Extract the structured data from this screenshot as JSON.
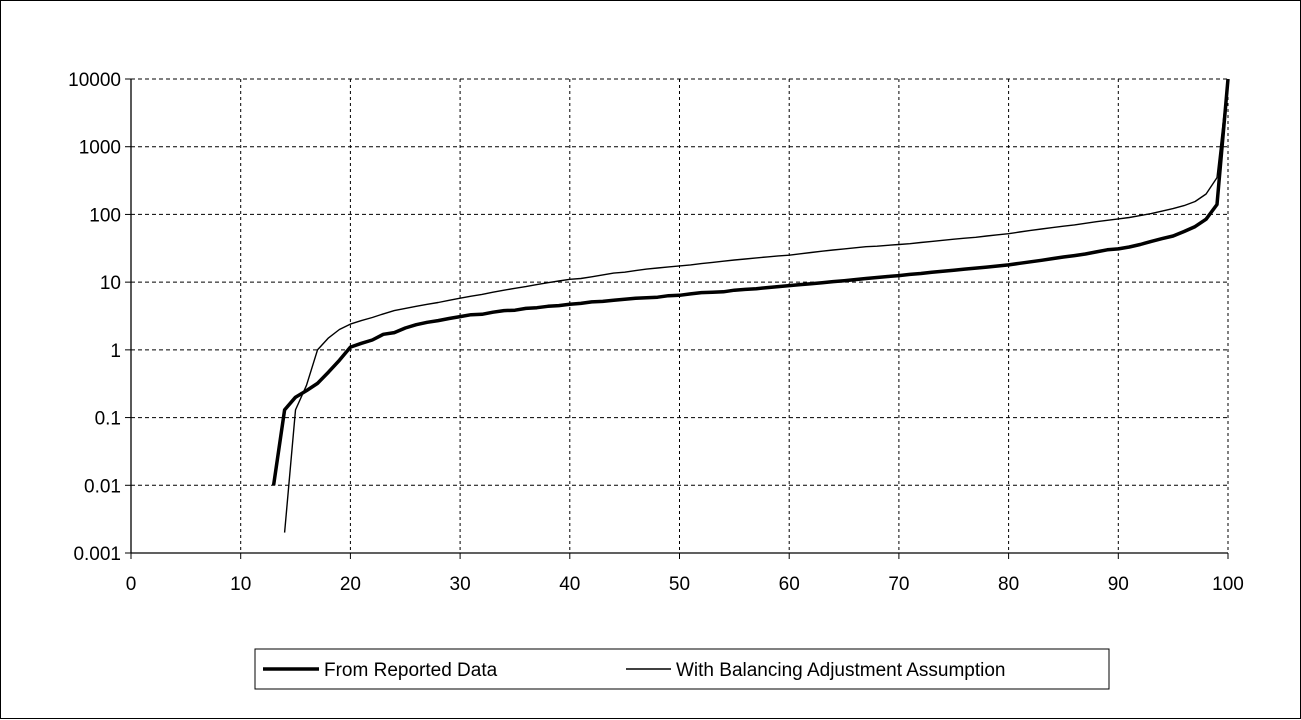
{
  "chart_data": {
    "type": "line",
    "title": "",
    "xlabel": "",
    "ylabel": "",
    "xlim": [
      0,
      100
    ],
    "ylim": [
      0.001,
      10000
    ],
    "yscale": "log",
    "x_ticks": [
      "0",
      "10",
      "20",
      "30",
      "40",
      "50",
      "60",
      "70",
      "80",
      "90",
      "100"
    ],
    "y_ticks": [
      "10000",
      "1000",
      "100",
      "10",
      "1",
      "0.1",
      "0.01",
      "0.001"
    ],
    "grid": true,
    "legend_position": "bottom",
    "series": [
      {
        "name": "From Reported Data",
        "color": "#000000",
        "line_style": "thick",
        "points": [
          [
            13,
            0.01
          ],
          [
            14,
            0.13
          ],
          [
            15,
            0.2
          ],
          [
            16,
            0.25
          ],
          [
            17,
            0.32
          ],
          [
            18,
            0.47
          ],
          [
            19,
            0.7
          ],
          [
            20,
            1.1
          ],
          [
            21,
            1.25
          ],
          [
            22,
            1.4
          ],
          [
            23,
            1.7
          ],
          [
            24,
            1.8
          ],
          [
            25,
            2.1
          ],
          [
            26,
            2.35
          ],
          [
            27,
            2.55
          ],
          [
            28,
            2.7
          ],
          [
            29,
            2.9
          ],
          [
            30,
            3.1
          ],
          [
            31,
            3.3
          ],
          [
            32,
            3.35
          ],
          [
            33,
            3.6
          ],
          [
            34,
            3.8
          ],
          [
            35,
            3.85
          ],
          [
            36,
            4.1
          ],
          [
            37,
            4.2
          ],
          [
            38,
            4.4
          ],
          [
            39,
            4.5
          ],
          [
            40,
            4.7
          ],
          [
            41,
            4.85
          ],
          [
            42,
            5.1
          ],
          [
            43,
            5.2
          ],
          [
            44,
            5.4
          ],
          [
            45,
            5.6
          ],
          [
            46,
            5.8
          ],
          [
            47,
            5.9
          ],
          [
            48,
            6.0
          ],
          [
            49,
            6.3
          ],
          [
            50,
            6.4
          ],
          [
            51,
            6.7
          ],
          [
            52,
            7.0
          ],
          [
            53,
            7.1
          ],
          [
            54,
            7.2
          ],
          [
            55,
            7.6
          ],
          [
            56,
            7.8
          ],
          [
            57,
            8.0
          ],
          [
            58,
            8.3
          ],
          [
            59,
            8.6
          ],
          [
            60,
            8.9
          ],
          [
            61,
            9.2
          ],
          [
            62,
            9.5
          ],
          [
            63,
            9.8
          ],
          [
            64,
            10.2
          ],
          [
            65,
            10.5
          ],
          [
            66,
            10.9
          ],
          [
            67,
            11.3
          ],
          [
            68,
            11.7
          ],
          [
            69,
            12.1
          ],
          [
            70,
            12.5
          ],
          [
            71,
            13.0
          ],
          [
            72,
            13.4
          ],
          [
            73,
            14.0
          ],
          [
            74,
            14.5
          ],
          [
            75,
            15.0
          ],
          [
            76,
            15.6
          ],
          [
            77,
            16.1
          ],
          [
            78,
            16.7
          ],
          [
            79,
            17.3
          ],
          [
            80,
            18.0
          ],
          [
            81,
            19.0
          ],
          [
            82,
            20.0
          ],
          [
            83,
            21.0
          ],
          [
            84,
            22.3
          ],
          [
            85,
            23.5
          ],
          [
            86,
            24.7
          ],
          [
            87,
            26.0
          ],
          [
            88,
            28.0
          ],
          [
            89,
            30.0
          ],
          [
            90,
            31.0
          ],
          [
            91,
            33.0
          ],
          [
            92,
            36.0
          ],
          [
            93,
            40.0
          ],
          [
            94,
            44.0
          ],
          [
            95,
            48.0
          ],
          [
            96,
            56.0
          ],
          [
            97,
            66.0
          ],
          [
            98,
            85.0
          ],
          [
            99,
            140.0
          ],
          [
            100,
            10000
          ]
        ]
      },
      {
        "name": "With Balancing Adjustment Assumption",
        "color": "#000000",
        "line_style": "thin",
        "points": [
          [
            14,
            0.002
          ],
          [
            15,
            0.13
          ],
          [
            16,
            0.3
          ],
          [
            17,
            1.0
          ],
          [
            18,
            1.5
          ],
          [
            19,
            2.0
          ],
          [
            20,
            2.4
          ],
          [
            21,
            2.7
          ],
          [
            22,
            3.0
          ],
          [
            23,
            3.4
          ],
          [
            24,
            3.8
          ],
          [
            25,
            4.1
          ],
          [
            26,
            4.4
          ],
          [
            27,
            4.7
          ],
          [
            28,
            5.0
          ],
          [
            29,
            5.4
          ],
          [
            30,
            5.8
          ],
          [
            31,
            6.2
          ],
          [
            32,
            6.6
          ],
          [
            33,
            7.1
          ],
          [
            34,
            7.6
          ],
          [
            35,
            8.1
          ],
          [
            36,
            8.6
          ],
          [
            37,
            9.2
          ],
          [
            38,
            9.8
          ],
          [
            39,
            10.4
          ],
          [
            40,
            11.0
          ],
          [
            41,
            11.3
          ],
          [
            42,
            12.0
          ],
          [
            43,
            12.8
          ],
          [
            44,
            13.6
          ],
          [
            45,
            14.0
          ],
          [
            46,
            14.8
          ],
          [
            47,
            15.6
          ],
          [
            48,
            16.2
          ],
          [
            49,
            16.8
          ],
          [
            50,
            17.4
          ],
          [
            51,
            18.0
          ],
          [
            52,
            18.8
          ],
          [
            53,
            19.6
          ],
          [
            54,
            20.4
          ],
          [
            55,
            21.2
          ],
          [
            56,
            22.0
          ],
          [
            57,
            22.8
          ],
          [
            58,
            23.6
          ],
          [
            59,
            24.4
          ],
          [
            60,
            25.0
          ],
          [
            61,
            26.2
          ],
          [
            62,
            27.4
          ],
          [
            63,
            28.6
          ],
          [
            64,
            29.8
          ],
          [
            65,
            31.0
          ],
          [
            66,
            32.2
          ],
          [
            67,
            33.4
          ],
          [
            68,
            34.0
          ],
          [
            69,
            35.0
          ],
          [
            70,
            36.0
          ],
          [
            71,
            37.0
          ],
          [
            72,
            38.5
          ],
          [
            73,
            40.0
          ],
          [
            74,
            41.5
          ],
          [
            75,
            43.0
          ],
          [
            76,
            44.5
          ],
          [
            77,
            46.0
          ],
          [
            78,
            48.0
          ],
          [
            79,
            50.0
          ],
          [
            80,
            52.0
          ],
          [
            81,
            55.0
          ],
          [
            82,
            58.0
          ],
          [
            83,
            61.0
          ],
          [
            84,
            64.0
          ],
          [
            85,
            67.0
          ],
          [
            86,
            70.0
          ],
          [
            87,
            74.0
          ],
          [
            88,
            78.0
          ],
          [
            89,
            82.0
          ],
          [
            90,
            86.0
          ],
          [
            91,
            90.0
          ],
          [
            92,
            96.0
          ],
          [
            93,
            103.0
          ],
          [
            94,
            112.0
          ],
          [
            95,
            122.0
          ],
          [
            96,
            135.0
          ],
          [
            97,
            155.0
          ],
          [
            98,
            200.0
          ],
          [
            99,
            350.0
          ],
          [
            100,
            10000
          ]
        ]
      }
    ]
  }
}
